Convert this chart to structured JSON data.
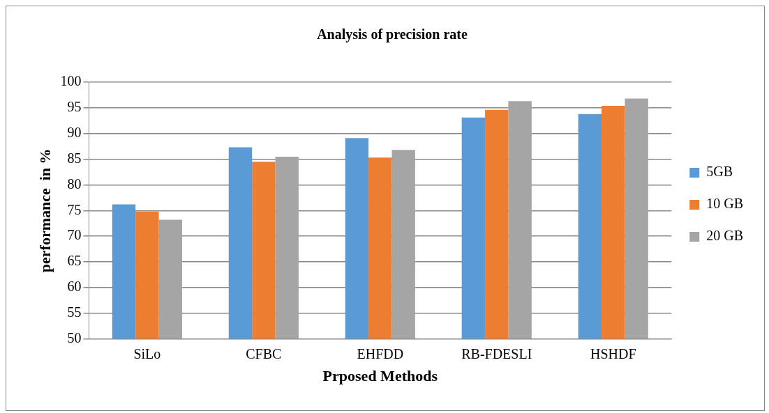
{
  "chart_data": {
    "type": "bar",
    "title": "Analysis of precision rate",
    "xlabel": "Prposed Methods",
    "ylabel": "performance  in %",
    "categories": [
      "SiLo",
      "CFBC",
      "EHFDD",
      "RB-FDESLI",
      "HSHDF"
    ],
    "series": [
      {
        "name": "5GB",
        "color": "#5b9bd5",
        "values": [
          76.2,
          87.3,
          89.1,
          93.1,
          93.8
        ]
      },
      {
        "name": "10 GB",
        "color": "#ed7d31",
        "values": [
          74.8,
          84.5,
          85.3,
          94.6,
          95.4
        ]
      },
      {
        "name": "20 GB",
        "color": "#a5a5a5",
        "values": [
          73.2,
          85.5,
          86.8,
          96.3,
          96.8
        ]
      }
    ],
    "ylim": [
      50,
      100
    ],
    "yticks": [
      50,
      55,
      60,
      65,
      70,
      75,
      80,
      85,
      90,
      95,
      100
    ],
    "grid": "y",
    "legend": "right"
  }
}
